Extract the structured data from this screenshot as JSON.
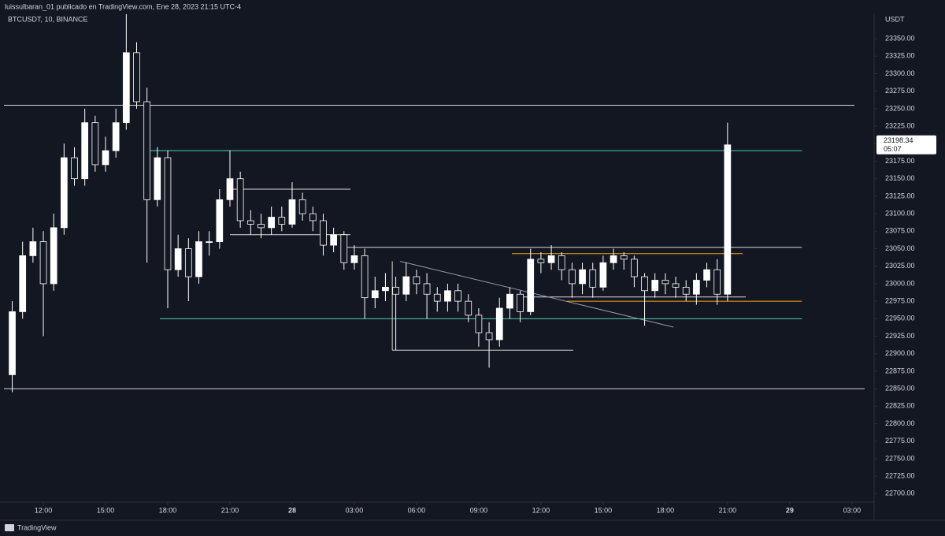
{
  "header": "luissulbaran_01 publicado en TradingView.com, Ene 28, 2023 21:15 UTC-4",
  "footer": "TradingView",
  "chart_data": {
    "type": "candlestick",
    "symbol": "BTCUSDT, 10, BINANCE",
    "currency": "USDT",
    "countdown": "05:07",
    "up_color": "#ffffff",
    "down_color": "#131722",
    "wick_color": "#ffffff",
    "x": [
      10.5,
      11,
      11.5,
      12,
      12.5,
      13,
      13.5,
      14,
      14.5,
      15,
      15.5,
      16,
      16.5,
      17,
      17.5,
      18,
      18.5,
      19,
      19.5,
      20,
      20.5,
      21,
      21.5,
      22,
      22.5,
      23,
      23.5,
      24,
      24.5,
      25,
      25.5,
      26,
      26.5,
      27,
      27.5,
      28,
      28.5,
      29,
      29.5,
      30,
      30.5,
      31,
      31.5,
      32,
      32.5,
      33,
      33.5,
      34,
      34.5,
      35,
      35.5,
      36,
      36.5,
      37,
      37.5,
      38,
      38.5,
      39,
      39.5,
      40,
      40.5,
      41,
      41.5,
      42,
      42.5,
      43,
      43.5,
      44,
      44.5,
      45
    ],
    "open": [
      22870,
      22960,
      23040,
      23060,
      23000,
      23080,
      23180,
      23150,
      23230,
      23170,
      23190,
      23230,
      23330,
      23260,
      23120,
      23180,
      23020,
      23050,
      23010,
      23060,
      23060,
      23120,
      23150,
      23090,
      23085,
      23080,
      23095,
      23085,
      23120,
      23100,
      23090,
      23055,
      23070,
      23030,
      23040,
      22980,
      22990,
      22995,
      22985,
      23010,
      23000,
      22985,
      22975,
      22990,
      22975,
      22955,
      22930,
      22920,
      22965,
      22985,
      22960,
      23035,
      23030,
      23040,
      23020,
      23000,
      23020,
      22995,
      23030,
      23040,
      23035,
      23010,
      22990,
      23005,
      23000,
      22995,
      22985,
      23005,
      23020,
      22985
    ],
    "high": [
      22975,
      23060,
      23080,
      23075,
      23100,
      23200,
      23195,
      23250,
      23240,
      23210,
      23250,
      23390,
      23345,
      23280,
      23195,
      23190,
      23070,
      23065,
      23075,
      23075,
      23135,
      23190,
      23160,
      23105,
      23100,
      23110,
      23110,
      23145,
      23130,
      23110,
      23100,
      23080,
      23075,
      23055,
      23050,
      23010,
      23015,
      23010,
      23030,
      23020,
      23015,
      22995,
      23000,
      23000,
      22985,
      22965,
      22945,
      22980,
      22995,
      22990,
      23050,
      23045,
      23055,
      23045,
      23030,
      23030,
      23030,
      23040,
      23050,
      23045,
      23040,
      23015,
      23015,
      23015,
      23010,
      23005,
      23015,
      23030,
      23035,
      23230
    ],
    "low": [
      22845,
      22950,
      23030,
      22925,
      22990,
      23070,
      23140,
      23140,
      23160,
      23160,
      23180,
      23220,
      23250,
      23030,
      23110,
      22965,
      23010,
      22975,
      23000,
      23040,
      23050,
      23110,
      23080,
      23070,
      23065,
      23070,
      23075,
      23080,
      23090,
      23075,
      23040,
      23045,
      23020,
      23020,
      22950,
      22965,
      22975,
      22905,
      22975,
      22985,
      22950,
      22960,
      22960,
      22960,
      22945,
      22910,
      22880,
      22910,
      22950,
      22945,
      22955,
      23015,
      23020,
      23005,
      22980,
      22985,
      22980,
      22990,
      23020,
      23020,
      22995,
      22940,
      22980,
      22985,
      22980,
      22975,
      22970,
      22995,
      22970,
      22975
    ],
    "close": [
      22960,
      23040,
      23060,
      23000,
      23080,
      23180,
      23150,
      23230,
      23170,
      23190,
      23230,
      23330,
      23260,
      23120,
      23180,
      23020,
      23050,
      23010,
      23060,
      23060,
      23120,
      23150,
      23090,
      23085,
      23080,
      23095,
      23085,
      23120,
      23100,
      23090,
      23055,
      23070,
      23030,
      23040,
      22980,
      22990,
      22995,
      22985,
      23010,
      23000,
      22985,
      22975,
      22990,
      22975,
      22955,
      22930,
      22920,
      22965,
      22985,
      22960,
      23035,
      23030,
      23040,
      23020,
      23000,
      23020,
      22995,
      23030,
      23040,
      23035,
      23010,
      22990,
      23005,
      23000,
      22995,
      22985,
      23005,
      23020,
      22985,
      23198.34
    ],
    "xlim": [
      9.91,
      52.07
    ],
    "ylim": [
      22688,
      23385
    ],
    "xticks": [
      {
        "value": 12,
        "label": "12:00"
      },
      {
        "value": 15,
        "label": "15:00"
      },
      {
        "value": 18,
        "label": "18:00"
      },
      {
        "value": 21,
        "label": "21:00"
      },
      {
        "value": 24,
        "label": "28"
      },
      {
        "value": 27,
        "label": "03:00"
      },
      {
        "value": 30,
        "label": "06:00"
      },
      {
        "value": 33,
        "label": "09:00"
      },
      {
        "value": 36,
        "label": "12:00"
      },
      {
        "value": 39,
        "label": "15:00"
      },
      {
        "value": 42,
        "label": "18:00"
      },
      {
        "value": 45,
        "label": "21:00"
      },
      {
        "value": 48,
        "label": "29"
      },
      {
        "value": 51,
        "label": "03:00"
      }
    ],
    "yticks": [
      {
        "value": 22700,
        "label": "22700.00"
      },
      {
        "value": 22725,
        "label": "22725.00"
      },
      {
        "value": 22750,
        "label": "22750.00"
      },
      {
        "value": 22775,
        "label": "22775.00"
      },
      {
        "value": 22800,
        "label": "22800.00"
      },
      {
        "value": 22825,
        "label": "22825.00"
      },
      {
        "value": 22850,
        "label": "22850.00"
      },
      {
        "value": 22875,
        "label": "22875.00"
      },
      {
        "value": 22900,
        "label": "22900.00"
      },
      {
        "value": 22925,
        "label": "22925.00"
      },
      {
        "value": 22950,
        "label": "22950.00"
      },
      {
        "value": 22975,
        "label": "22975.00"
      },
      {
        "value": 23000,
        "label": "23000.00"
      },
      {
        "value": 23025,
        "label": "23025.00"
      },
      {
        "value": 23050,
        "label": "23050.00"
      },
      {
        "value": 23075,
        "label": "23075.00"
      },
      {
        "value": 23100,
        "label": "23100.00"
      },
      {
        "value": 23125,
        "label": "23125.00"
      },
      {
        "value": 23150,
        "label": "23150.00"
      },
      {
        "value": 23175,
        "label": "23175.00"
      },
      {
        "value": 23200,
        "label": "23200.00"
      },
      {
        "value": 23225,
        "label": "23225.00"
      },
      {
        "value": 23250,
        "label": "23250.00"
      },
      {
        "value": 23275,
        "label": "23275.00"
      },
      {
        "value": 23300,
        "label": "23300.00"
      },
      {
        "value": 23325,
        "label": "23325.00"
      },
      {
        "value": 23350,
        "label": "23350.00"
      }
    ],
    "drawings": [
      {
        "from": [
          10.1,
          23255
        ],
        "to": [
          51.12,
          23255
        ],
        "color": "#d8d8d8"
      },
      {
        "from": [
          10.1,
          22850
        ],
        "to": [
          51.61,
          22850
        ],
        "color": "#d8d8d8"
      },
      {
        "from": [
          17.13,
          23190
        ],
        "to": [
          48.58,
          23190
        ],
        "color": "#4dd0b0"
      },
      {
        "from": [
          17.62,
          22950
        ],
        "to": [
          48.58,
          22950
        ],
        "color": "#4dd0b0"
      },
      {
        "from": [
          21.0,
          23135
        ],
        "to": [
          26.81,
          23135
        ],
        "color": "#d8d8d8"
      },
      {
        "from": [
          21.0,
          23070
        ],
        "to": [
          26.81,
          23070
        ],
        "color": "#d8d8d8"
      },
      {
        "from": [
          26.51,
          23052
        ],
        "to": [
          48.58,
          23052
        ],
        "color": "#d8d8d8"
      },
      {
        "from": [
          28.83,
          22905
        ],
        "to": [
          37.56,
          22905
        ],
        "color": "#d8d8d8"
      },
      {
        "from": [
          28.83,
          22905
        ],
        "to": [
          28.83,
          23032
        ],
        "color": "#d8d8d8"
      },
      {
        "from": [
          34.6,
          23043
        ],
        "to": [
          45.73,
          23043
        ],
        "color": "#f7a21b"
      },
      {
        "from": [
          37.26,
          22975
        ],
        "to": [
          48.58,
          22975
        ],
        "color": "#f7a21b"
      },
      {
        "from": [
          34.98,
          22981
        ],
        "to": [
          45.88,
          22981
        ],
        "color": "#d8d8d8"
      },
      {
        "from": [
          29.21,
          23032
        ],
        "to": [
          42.39,
          22938
        ],
        "color": "#9598a1"
      }
    ]
  }
}
